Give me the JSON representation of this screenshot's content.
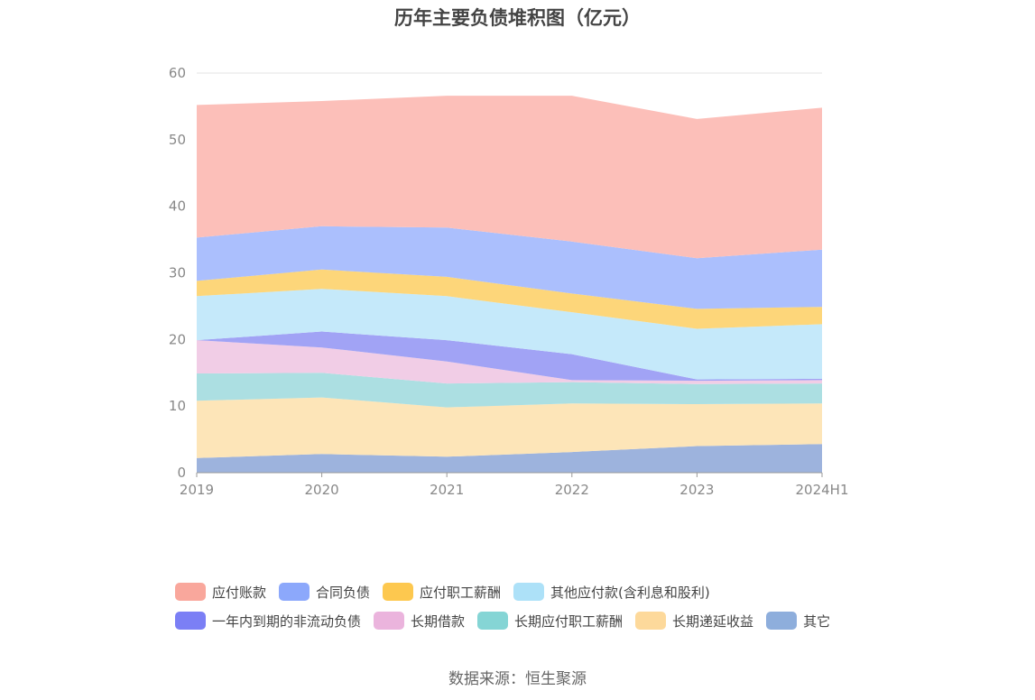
{
  "chart_data": {
    "type": "area",
    "stacked": true,
    "title": "历年主要负债堆积图（亿元）",
    "categories": [
      "2019",
      "2020",
      "2021",
      "2022",
      "2023",
      "2024H1"
    ],
    "ylim": [
      0,
      60
    ],
    "yticks": [
      0,
      10,
      20,
      30,
      40,
      50,
      60
    ],
    "grid": true,
    "legend_position": "bottom",
    "series": [
      {
        "name": "其它",
        "color": "#9db3dd",
        "legend_color": "#8eaedc",
        "values": [
          2.2,
          2.8,
          2.4,
          3.1,
          4.0,
          4.3
        ]
      },
      {
        "name": "长期递延收益",
        "color": "#fde5b8",
        "legend_color": "#fdd99b",
        "values": [
          8.6,
          8.5,
          7.4,
          7.3,
          6.3,
          6.1
        ]
      },
      {
        "name": "长期应付职工薪酬",
        "color": "#acdfe2",
        "legend_color": "#85d5d5",
        "values": [
          4.1,
          3.7,
          3.6,
          3.2,
          3.0,
          3.0
        ]
      },
      {
        "name": "长期借款",
        "color": "#f1cde6",
        "legend_color": "#ebb4dd",
        "values": [
          5.0,
          3.8,
          3.3,
          0.3,
          0.5,
          0.5
        ]
      },
      {
        "name": "一年内到期的非流动负债",
        "color": "#a1a3f5",
        "legend_color": "#7b7ff5",
        "values": [
          0.0,
          2.4,
          3.2,
          3.9,
          0.2,
          0.2
        ]
      },
      {
        "name": "其他应付款(含利息和股利)",
        "color": "#c5e9fa",
        "legend_color": "#ade1f8",
        "values": [
          6.6,
          6.4,
          6.6,
          6.3,
          7.6,
          8.2
        ]
      },
      {
        "name": "应付职工薪酬",
        "color": "#fdd67a",
        "legend_color": "#fdc84f",
        "values": [
          2.3,
          2.9,
          2.9,
          2.8,
          3.0,
          2.6
        ]
      },
      {
        "name": "合同负债",
        "color": "#abbffd",
        "legend_color": "#8ca8fb",
        "values": [
          6.5,
          6.5,
          7.4,
          7.8,
          7.6,
          8.6
        ]
      },
      {
        "name": "应付账款",
        "color": "#fcbfb9",
        "legend_color": "#f9a79c",
        "values": [
          19.9,
          18.8,
          19.8,
          21.9,
          20.9,
          21.3
        ]
      }
    ],
    "legend_order": [
      "应付账款",
      "合同负债",
      "应付职工薪酬",
      "其他应付款(含利息和股利)",
      "一年内到期的非流动负债",
      "长期借款",
      "长期应付职工薪酬",
      "长期递延收益",
      "其它"
    ]
  },
  "source_text": "数据来源：恒生聚源"
}
